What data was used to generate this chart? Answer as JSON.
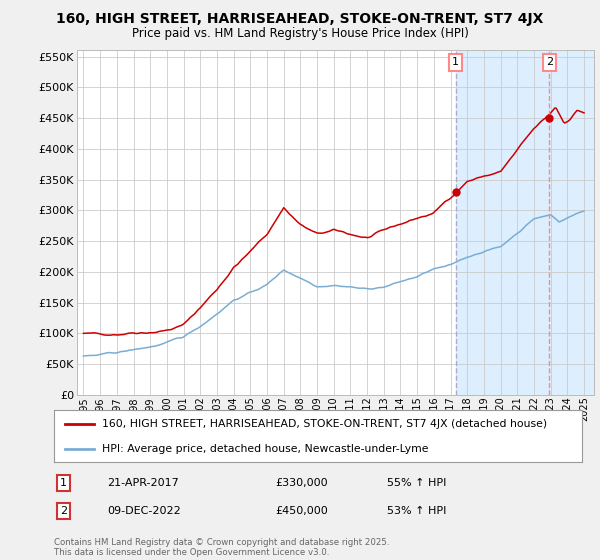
{
  "title": "160, HIGH STREET, HARRISEAHEAD, STOKE-ON-TRENT, ST7 4JX",
  "subtitle": "Price paid vs. HM Land Registry's House Price Index (HPI)",
  "background_color": "#f0f0f0",
  "plot_bg_color": "#ffffff",
  "shade_color": "#ddeeff",
  "red_line_label": "160, HIGH STREET, HARRISEAHEAD, STOKE-ON-TRENT, ST7 4JX (detached house)",
  "blue_line_label": "HPI: Average price, detached house, Newcastle-under-Lyme",
  "annotation1_date": "21-APR-2017",
  "annotation1_price": "£330,000",
  "annotation1_hpi": "55% ↑ HPI",
  "annotation2_date": "09-DEC-2022",
  "annotation2_price": "£450,000",
  "annotation2_hpi": "53% ↑ HPI",
  "copyright": "Contains HM Land Registry data © Crown copyright and database right 2025.\nThis data is licensed under the Open Government Licence v3.0.",
  "ylim": [
    0,
    560000
  ],
  "yticks": [
    0,
    50000,
    100000,
    150000,
    200000,
    250000,
    300000,
    350000,
    400000,
    450000,
    500000,
    550000
  ],
  "ytick_labels": [
    "£0",
    "£50K",
    "£100K",
    "£150K",
    "£200K",
    "£250K",
    "£300K",
    "£350K",
    "£400K",
    "£450K",
    "£500K",
    "£550K"
  ],
  "vline1_x": 2017.3,
  "vline2_x": 2022.92,
  "marker1_red_y": 330000,
  "marker2_red_y": 450000,
  "xtick_years": [
    1995,
    1996,
    1997,
    1998,
    1999,
    2000,
    2001,
    2002,
    2003,
    2004,
    2005,
    2006,
    2007,
    2008,
    2009,
    2010,
    2011,
    2012,
    2013,
    2014,
    2015,
    2016,
    2017,
    2018,
    2019,
    2020,
    2021,
    2022,
    2023,
    2024,
    2025
  ],
  "xmin": 1994.6,
  "xmax": 2025.6,
  "red_color": "#cc0000",
  "blue_color": "#7aadd4",
  "vline1_color": "#aaaacc",
  "vline2_color": "#ff8888",
  "grid_color": "#cccccc",
  "legend_border_color": "#999999",
  "ann_box_color": "#cc3333"
}
